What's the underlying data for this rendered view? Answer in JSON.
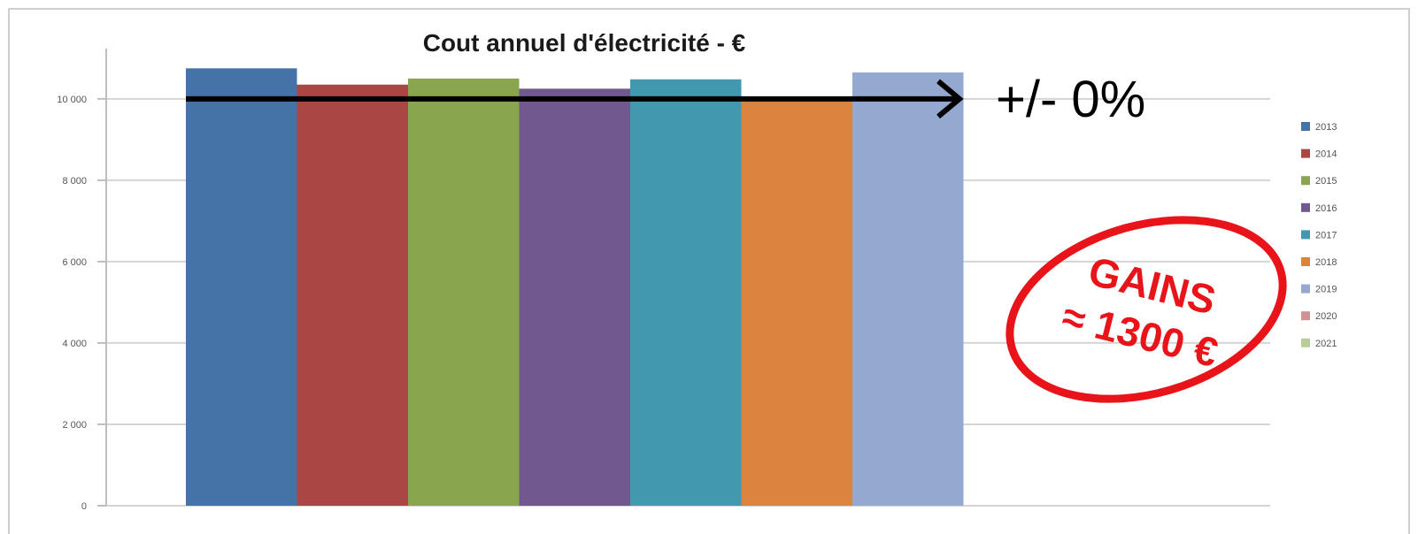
{
  "chart_data": {
    "type": "bar",
    "title": "Cout annuel d'électricité - €",
    "xlabel": "",
    "ylabel": "",
    "ylim": [
      0,
      10800
    ],
    "yticks": [
      0,
      2000,
      4000,
      6000,
      8000,
      10000
    ],
    "ytick_labels": [
      "0",
      "2 000",
      "4 000",
      "6 000",
      "8 000",
      "10 000"
    ],
    "grid": true,
    "legend_position": "right",
    "series": [
      {
        "name": "2013",
        "value": 10750,
        "color": "#4572a7"
      },
      {
        "name": "2014",
        "value": 10350,
        "color": "#aa4643"
      },
      {
        "name": "2015",
        "value": 10500,
        "color": "#89a54e"
      },
      {
        "name": "2016",
        "value": 10250,
        "color": "#71588f"
      },
      {
        "name": "2017",
        "value": 10480,
        "color": "#4198af"
      },
      {
        "name": "2018",
        "value": 10020,
        "color": "#db843d"
      },
      {
        "name": "2019",
        "value": 10650,
        "color": "#93a9cf"
      },
      {
        "name": "2020",
        "value": null,
        "color": "#d19392"
      },
      {
        "name": "2021",
        "value": null,
        "color": "#b9cd96"
      }
    ],
    "annotations": {
      "trend_label": "+/- 0%",
      "trend_level": 10000,
      "stamp_line1": "GAINS",
      "stamp_line2": "≈ 1300 €",
      "stamp_color": "#e8141a"
    }
  }
}
